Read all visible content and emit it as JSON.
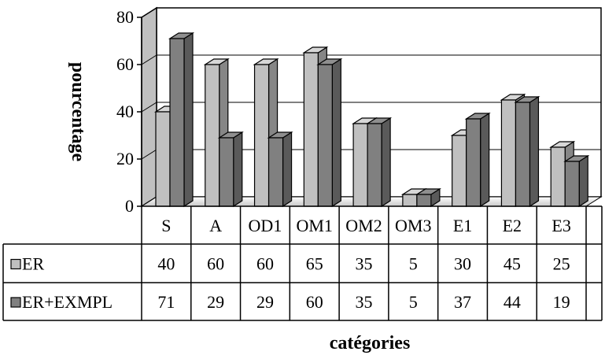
{
  "chart_data": {
    "type": "bar",
    "title": "",
    "xlabel": "catégories",
    "ylabel": "pourcentage",
    "ylim": [
      0,
      80
    ],
    "yticks": [
      0,
      20,
      40,
      60,
      80
    ],
    "grid": true,
    "three_d": true,
    "legend_placement": "data-table-left",
    "categories": [
      "S",
      "A",
      "OD1",
      "OM1",
      "OM2",
      "OM3",
      "E1",
      "E2",
      "E3"
    ],
    "series": [
      {
        "name": "ER",
        "color": "#c0c0c0",
        "values": [
          40,
          60,
          60,
          65,
          35,
          5,
          30,
          45,
          25
        ]
      },
      {
        "name": "ER+EXMPL",
        "color": "#808080",
        "values": [
          71,
          29,
          29,
          60,
          35,
          5,
          37,
          44,
          19
        ]
      }
    ]
  }
}
